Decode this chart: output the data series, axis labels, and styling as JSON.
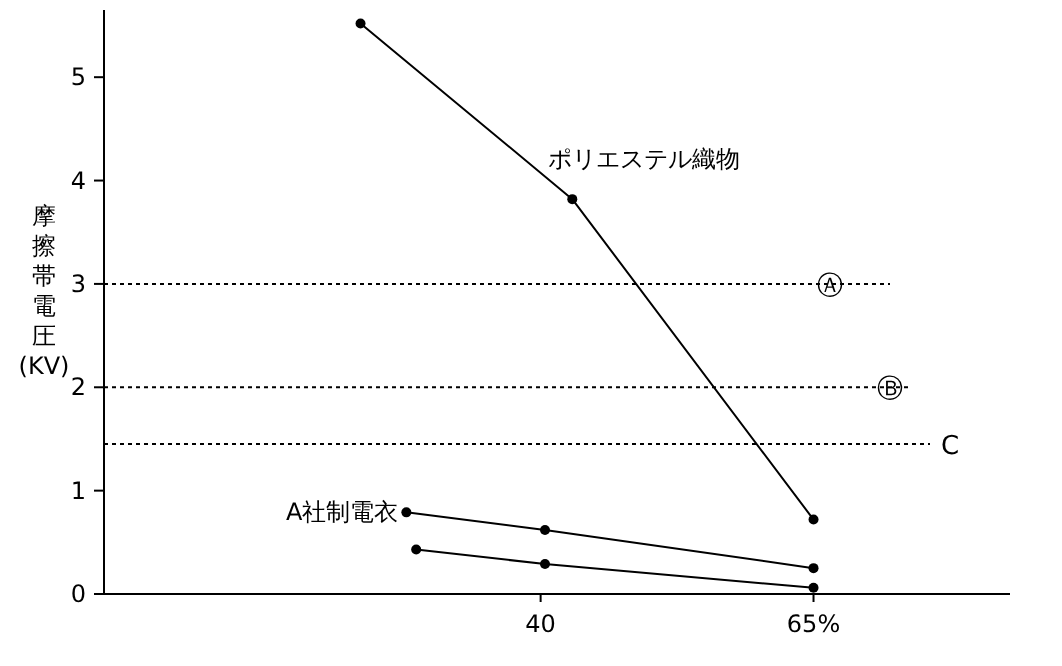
{
  "chart_data": {
    "type": "line",
    "ylabel": "摩擦帯電圧(KV)",
    "xlim": [
      0,
      83
    ],
    "ylim": [
      0,
      5.65
    ],
    "xticks": [
      40,
      {
        "value": 65,
        "label": "65%"
      }
    ],
    "yticks": [
      0,
      1,
      2,
      3,
      4,
      5
    ],
    "grid": false,
    "marker": "circle",
    "line_style": "solid",
    "series": [
      {
        "name": "ポリエステル織物",
        "color": "#000000",
        "x": [
          23.5,
          42.9,
          65
        ],
        "values": [
          5.52,
          3.82,
          0.72
        ]
      },
      {
        "name": "A社制電衣",
        "color": "#000000",
        "x": [
          27.7,
          40.4,
          65
        ],
        "values": [
          0.79,
          0.62,
          0.25
        ]
      },
      {
        "color": "#000000",
        "x": [
          28.6,
          40.4,
          65
        ],
        "values": [
          0.43,
          0.29,
          0.06
        ]
      }
    ],
    "ref_lines": [
      {
        "axis": "y",
        "value": 3,
        "label": "Ⓐ",
        "line_style": "dotted"
      },
      {
        "axis": "y",
        "value": 2,
        "label": "Ⓑ",
        "line_style": "dotted"
      },
      {
        "axis": "y",
        "value": 1.45,
        "label": "C",
        "line_style": "dotted"
      }
    ]
  }
}
